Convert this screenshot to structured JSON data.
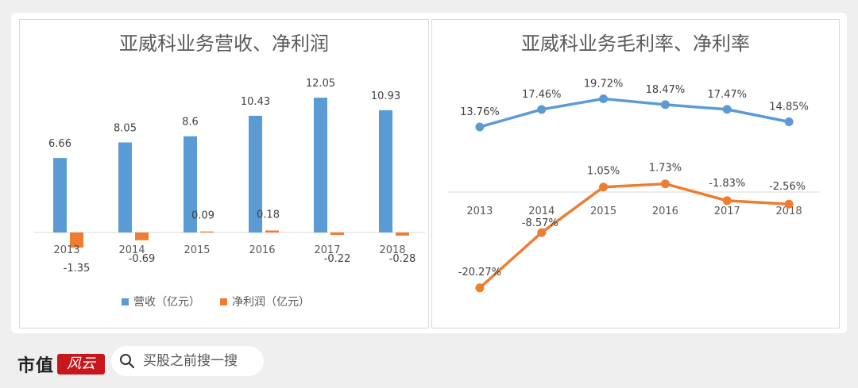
{
  "chart_data": [
    {
      "type": "bar",
      "title": "亚威科业务营收、净利润",
      "categories": [
        "2013",
        "2014",
        "2015",
        "2016",
        "2017",
        "2018"
      ],
      "series": [
        {
          "name": "营收（亿元）",
          "values": [
            6.66,
            8.05,
            8.6,
            10.43,
            12.05,
            10.93
          ],
          "color": "#5b9bd5"
        },
        {
          "name": "净利润（亿元）",
          "values": [
            -1.35,
            -0.69,
            0.09,
            0.18,
            -0.22,
            -0.28
          ],
          "color": "#ed7d31"
        }
      ],
      "value_labels": [
        [
          "6.66",
          "8.05",
          "8.6",
          "10.43",
          "12.05",
          "10.93"
        ],
        [
          "-1.35",
          "-0.69",
          "0.09",
          "0.18",
          "-0.22",
          "-0.28"
        ]
      ],
      "ylim": [
        -1.5,
        13.5
      ],
      "legend": "bottom",
      "grid": false
    },
    {
      "type": "line",
      "title": "亚威科业务毛利率、净利率",
      "categories": [
        "2013",
        "2014",
        "2015",
        "2016",
        "2017",
        "2018"
      ],
      "series": [
        {
          "values": [
            13.76,
            17.46,
            19.72,
            18.47,
            17.47,
            14.85
          ],
          "color": "#5b9bd5"
        },
        {
          "values": [
            -20.27,
            -8.57,
            1.05,
            1.73,
            -1.83,
            -2.56
          ],
          "color": "#ed7d31"
        }
      ],
      "value_labels": [
        [
          "13.76%",
          "17.46%",
          "19.72%",
          "18.47%",
          "17.47%",
          "14.85%"
        ],
        [
          "-20.27%",
          "-8.57%",
          "1.05%",
          "1.73%",
          "-1.83%",
          "-2.56%"
        ]
      ],
      "ylim": [
        -22,
        25
      ],
      "legend": "none",
      "grid": false
    }
  ],
  "footer": {
    "brand": "市值",
    "seal_text": "风云",
    "search_placeholder": "买股之前搜一搜"
  },
  "watermark": "市值风云"
}
